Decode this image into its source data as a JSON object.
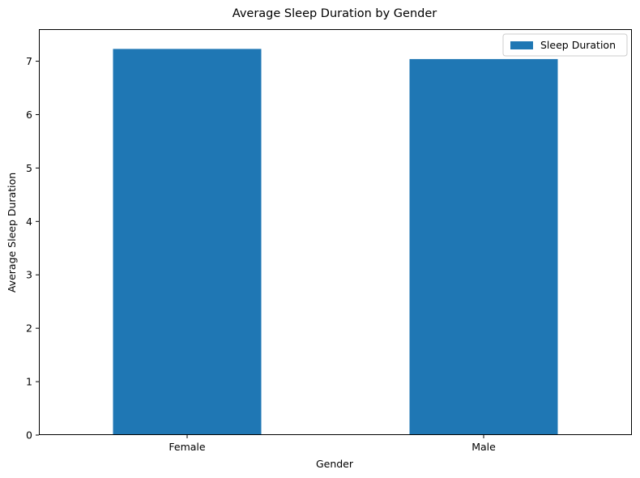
{
  "chart_data": {
    "type": "bar",
    "title": "Average Sleep Duration by Gender",
    "xlabel": "Gender",
    "ylabel": "Average Sleep Duration",
    "categories": [
      "Female",
      "Male"
    ],
    "series": [
      {
        "name": "Sleep Duration",
        "values": [
          7.23,
          7.04
        ],
        "color": "#1f77b4"
      }
    ],
    "ylim": [
      0,
      7.6
    ],
    "yticks": [
      0,
      1,
      2,
      3,
      4,
      5,
      6,
      7
    ],
    "grid": false,
    "legend": {
      "position": "top-right",
      "entries": [
        "Sleep Duration"
      ]
    }
  }
}
